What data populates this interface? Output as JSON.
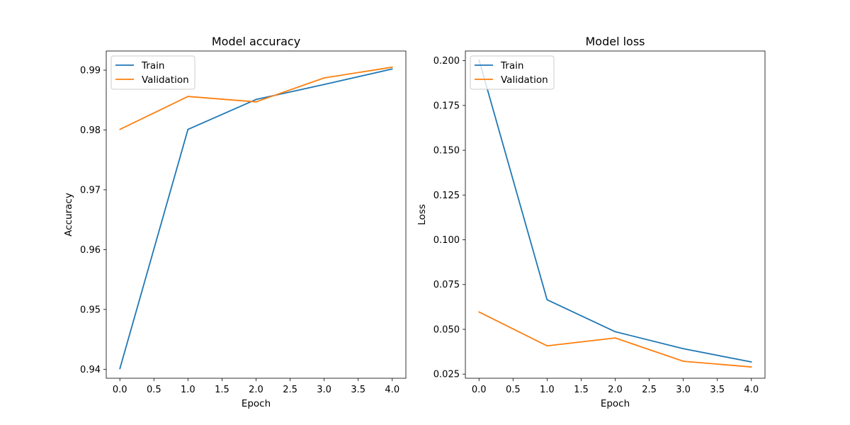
{
  "chart_data": [
    {
      "type": "line",
      "title": "Model accuracy",
      "xlabel": "Epoch",
      "ylabel": "Accuracy",
      "x": [
        0,
        1,
        2,
        3,
        4
      ],
      "xlim": [
        -0.2,
        4.2
      ],
      "ylim": [
        0.9385,
        0.9932
      ],
      "xticks": [
        0.0,
        0.5,
        1.0,
        1.5,
        2.0,
        2.5,
        3.0,
        3.5,
        4.0
      ],
      "xtick_labels": [
        "0.0",
        "0.5",
        "1.0",
        "1.5",
        "2.0",
        "2.5",
        "3.0",
        "3.5",
        "4.0"
      ],
      "yticks": [
        0.94,
        0.95,
        0.96,
        0.97,
        0.98,
        0.99
      ],
      "ytick_labels": [
        "0.94",
        "0.95",
        "0.96",
        "0.97",
        "0.98",
        "0.99"
      ],
      "grid": false,
      "legend_position": "upper left",
      "series": [
        {
          "name": "Train",
          "color": "#1f77b4",
          "values": [
            0.9401,
            0.9801,
            0.9851,
            0.9876,
            0.9902
          ]
        },
        {
          "name": "Validation",
          "color": "#ff7f0e",
          "values": [
            0.9801,
            0.9856,
            0.9847,
            0.9887,
            0.9905
          ]
        }
      ]
    },
    {
      "type": "line",
      "title": "Model loss",
      "xlabel": "Epoch",
      "ylabel": "Loss",
      "x": [
        0,
        1,
        2,
        3,
        4
      ],
      "xlim": [
        -0.2,
        4.2
      ],
      "ylim": [
        0.0227,
        0.2054
      ],
      "xticks": [
        0.0,
        0.5,
        1.0,
        1.5,
        2.0,
        2.5,
        3.0,
        3.5,
        4.0
      ],
      "xtick_labels": [
        "0.0",
        "0.5",
        "1.0",
        "1.5",
        "2.0",
        "2.5",
        "3.0",
        "3.5",
        "4.0"
      ],
      "yticks": [
        0.025,
        0.05,
        0.075,
        0.1,
        0.125,
        0.15,
        0.175,
        0.2
      ],
      "ytick_labels": [
        "0.025",
        "0.050",
        "0.075",
        "0.100",
        "0.125",
        "0.150",
        "0.175",
        "0.200"
      ],
      "grid": false,
      "legend_position": "upper left",
      "series": [
        {
          "name": "Train",
          "color": "#1f77b4",
          "values": [
            0.2005,
            0.0665,
            0.0487,
            0.0392,
            0.0318
          ]
        },
        {
          "name": "Validation",
          "color": "#ff7f0e",
          "values": [
            0.0597,
            0.0408,
            0.0452,
            0.0322,
            0.029
          ]
        }
      ]
    }
  ]
}
